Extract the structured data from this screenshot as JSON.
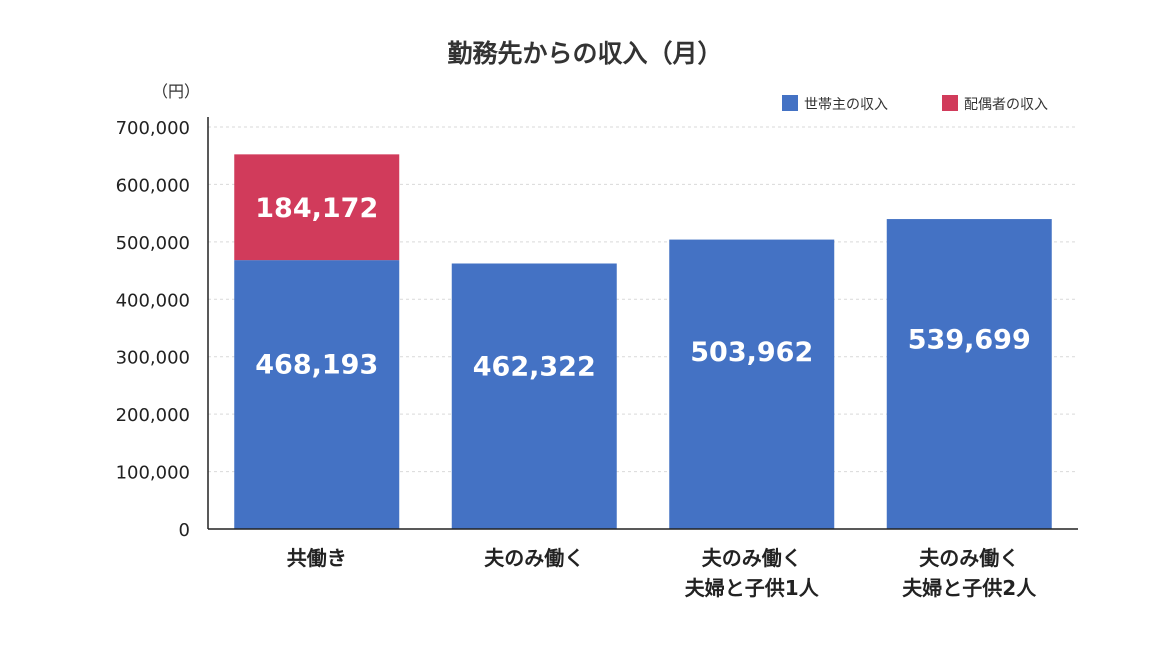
{
  "chart_data": {
    "type": "bar",
    "stacked": true,
    "title": "勤務先からの収入（月）",
    "ylabel": "（円）",
    "xlabel": "",
    "ylim": [
      0,
      700000
    ],
    "yticks": [
      0,
      100000,
      200000,
      300000,
      400000,
      500000,
      600000,
      700000
    ],
    "ytick_labels": [
      "0",
      "100,000",
      "200,000",
      "300,000",
      "400,000",
      "500,000",
      "600,000",
      "700,000"
    ],
    "grid": true,
    "legend_position": "top-right",
    "categories": [
      [
        "共働き"
      ],
      [
        "夫のみ働く"
      ],
      [
        "夫のみ働く",
        "夫婦と子供1人"
      ],
      [
        "夫のみ働く",
        "夫婦と子供2人"
      ]
    ],
    "series": [
      {
        "name": "世帯主の収入",
        "color": "#4472c4",
        "values": [
          468193,
          462322,
          503962,
          539699
        ],
        "labels": [
          "468,193",
          "462,322",
          "503,962",
          "539,699"
        ]
      },
      {
        "name": "配偶者の収入",
        "color": "#d13b5b",
        "values": [
          184172,
          0,
          0,
          0
        ],
        "labels": [
          "184,172",
          "",
          "",
          ""
        ]
      }
    ]
  }
}
